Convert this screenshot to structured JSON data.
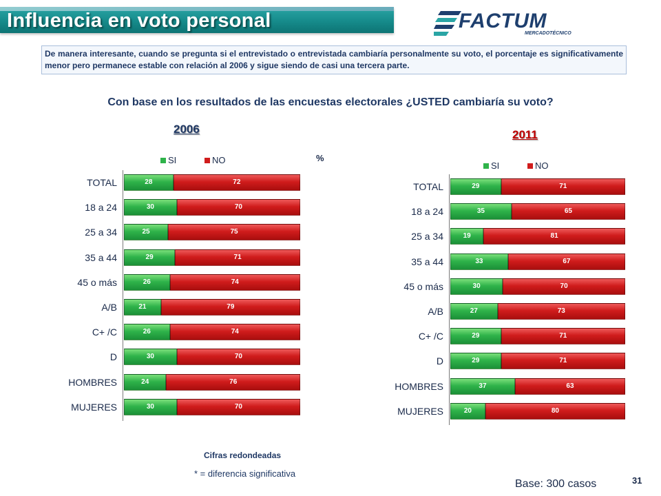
{
  "header": {
    "title": "Influencia en voto personal",
    "logo_text": "FACTUM",
    "logo_subtext": "MERCADOTÉCNICO"
  },
  "note": "De manera interesante, cuando se pregunta si el entrevistado o entrevistada cambiaría personalmente su voto, el porcentaje es significativamente menor pero permanece estable con relación al 2006 y sigue siendo de casi una tercera parte.",
  "question": "Con base en los resultados de las encuestas electorales ¿USTED cambiaría su voto?",
  "colors": {
    "si": "#2fb34a",
    "no": "#d01c1c",
    "title_bar": "#168b8b",
    "year_2006": "#1f3864",
    "year_2011": "#c00000"
  },
  "chart_data": [
    {
      "type": "bar",
      "orientation": "horizontal",
      "stacked": true,
      "title": "2006",
      "unit_label": "%",
      "legend": [
        "SI",
        "NO"
      ],
      "legend_position": "top",
      "categories": [
        "TOTAL",
        "18 a 24",
        "25 a 34",
        "35 a 44",
        "45 o más",
        "A/B",
        "C+ /C",
        "D",
        "HOMBRES",
        "MUJERES"
      ],
      "series": [
        {
          "name": "SI",
          "values": [
            28,
            30,
            25,
            29,
            26,
            21,
            26,
            30,
            24,
            30
          ]
        },
        {
          "name": "NO",
          "values": [
            72,
            70,
            75,
            71,
            74,
            79,
            74,
            70,
            76,
            70
          ]
        }
      ],
      "xlim": [
        0,
        100
      ]
    },
    {
      "type": "bar",
      "orientation": "horizontal",
      "stacked": true,
      "title": "2011",
      "legend": [
        "SI",
        "NO"
      ],
      "legend_position": "top",
      "categories": [
        "TOTAL",
        "18 a 24",
        "25 a 34",
        "35 a 44",
        "45 o más",
        "A/B",
        "C+ /C",
        "D",
        "HOMBRES",
        "MUJERES"
      ],
      "series": [
        {
          "name": "SI",
          "values": [
            29,
            35,
            19,
            33,
            30,
            27,
            29,
            29,
            37,
            20
          ]
        },
        {
          "name": "NO",
          "values": [
            71,
            65,
            81,
            67,
            70,
            73,
            71,
            71,
            63,
            80
          ]
        }
      ],
      "xlim": [
        0,
        100
      ]
    }
  ],
  "footer": {
    "rounded_note": "Cifras redondeadas",
    "significance_note": "* = diferencia significativa",
    "base": "Base: 300 casos",
    "page_number": "31"
  }
}
